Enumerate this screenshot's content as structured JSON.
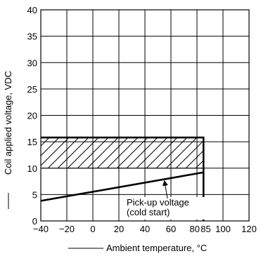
{
  "chart_data": {
    "type": "line",
    "xlabel": "Ambient temperature, °C",
    "ylabel": "Coil applied voltage, VDC",
    "xlim": [
      -40,
      120
    ],
    "ylim": [
      0,
      40
    ],
    "x_ticks": [
      -40,
      -20,
      0,
      20,
      40,
      60,
      80,
      100,
      120
    ],
    "x_tick_labels": [
      "−40",
      "−20",
      "0",
      "20",
      "40",
      "60",
      "80",
      "100",
      "120"
    ],
    "extra_x_tick": {
      "value": 85,
      "label": "85"
    },
    "y_ticks": [
      0,
      5,
      10,
      15,
      20,
      25,
      30,
      35,
      40
    ],
    "grid": true,
    "operating_region": {
      "x": [
        -40,
        85
      ],
      "y_max": 15.8
    },
    "hatched_region": {
      "x": [
        -40,
        85
      ],
      "y": [
        10,
        15.8
      ]
    },
    "series": [
      {
        "x": [
          -40,
          85
        ],
        "y": [
          3.8,
          9.2
        ]
      }
    ],
    "annotation": {
      "lines": [
        "Pick-up voltage",
        "(cold start)"
      ],
      "points_to": {
        "x": 55,
        "y": 8
      }
    }
  }
}
